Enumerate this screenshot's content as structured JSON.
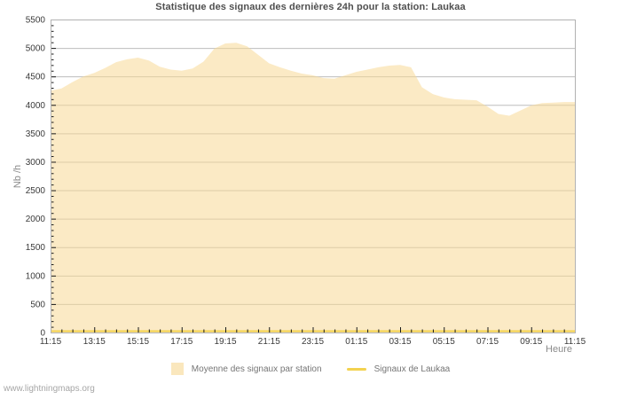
{
  "page": {
    "watermark": "www.lightningmaps.org"
  },
  "chart_data": {
    "type": "area",
    "title": "Statistique des signaux des dernières 24h pour la station: Laukaa",
    "xlabel": "Heure",
    "ylabel": "Nb /h",
    "ylim": [
      0,
      5500
    ],
    "y_major_step": 500,
    "y_minor_step": 100,
    "y_ticks": [
      0,
      500,
      1000,
      1500,
      2000,
      2500,
      3000,
      3500,
      4000,
      4500,
      5000,
      5500
    ],
    "x_tick_labels": [
      "11:15",
      "13:15",
      "15:15",
      "17:15",
      "19:15",
      "21:15",
      "23:15",
      "01:15",
      "03:15",
      "05:15",
      "07:15",
      "09:15",
      "11:15"
    ],
    "x_start": "11:15",
    "x_step_minutes": 30,
    "grid": "horizontal-only",
    "legend_position": "bottom-center",
    "series": [
      {
        "name": "Moyenne des signaux par station",
        "type": "area",
        "color": "#F7D895",
        "fill_opacity": 0.55,
        "values": [
          4250,
          4290,
          4400,
          4500,
          4560,
          4650,
          4750,
          4800,
          4830,
          4780,
          4670,
          4620,
          4600,
          4640,
          4760,
          4990,
          5080,
          5090,
          5030,
          4880,
          4730,
          4660,
          4600,
          4550,
          4520,
          4470,
          4460,
          4520,
          4580,
          4620,
          4660,
          4690,
          4700,
          4660,
          4310,
          4190,
          4130,
          4100,
          4090,
          4080,
          3970,
          3840,
          3810,
          3900,
          3990,
          4030,
          4040,
          4050,
          4050
        ]
      },
      {
        "name": "Signaux de Laukaa",
        "type": "line",
        "color": "#F3D24F",
        "constant_value": 0
      }
    ]
  },
  "legend": {
    "items": [
      {
        "label": "Moyenne des signaux par station",
        "swatch": "area"
      },
      {
        "label": "Signaux de Laukaa",
        "swatch": "line"
      }
    ]
  },
  "colors": {
    "background": "#FFFFFF",
    "gridline": "#BDBDBD",
    "border": "#B2B2B2",
    "tick": "#1A1A1A",
    "title_text": "#4F4F4F",
    "tick_label_text": "#3A3A3A",
    "axis_label_text": "#8A8A8A",
    "legend_text": "#757575",
    "watermark_text": "#A6A6A6"
  }
}
